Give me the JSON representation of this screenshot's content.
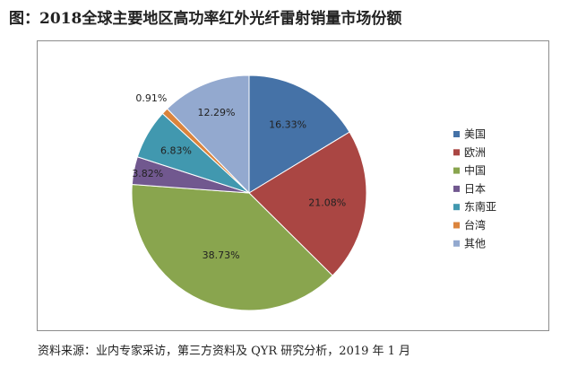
{
  "title": "图：2018全球主要地区高功率红外光纤雷射销量市场份额",
  "source": "资料来源：业内专家采访，第三方资料及 QYR 研究分析，2019 年 1 月",
  "chart_data": {
    "type": "pie",
    "title": "",
    "legend_position": "right",
    "slices": [
      {
        "label": "美国",
        "value": 16.33,
        "display": "16.33%",
        "color": "#4572A7"
      },
      {
        "label": "欧洲",
        "value": 21.08,
        "display": "21.08%",
        "color": "#AA4643"
      },
      {
        "label": "中国",
        "value": 38.73,
        "display": "38.73%",
        "color": "#89A54E"
      },
      {
        "label": "日本",
        "value": 3.82,
        "display": "3.82%",
        "color": "#71588F"
      },
      {
        "label": "东南亚",
        "value": 6.83,
        "display": "6.83%",
        "color": "#4198AF"
      },
      {
        "label": "台湾",
        "value": 0.91,
        "display": "0.91%",
        "color": "#DB843D"
      },
      {
        "label": "其他",
        "value": 12.29,
        "display": "12.29%",
        "color": "#93A9CF"
      }
    ]
  }
}
